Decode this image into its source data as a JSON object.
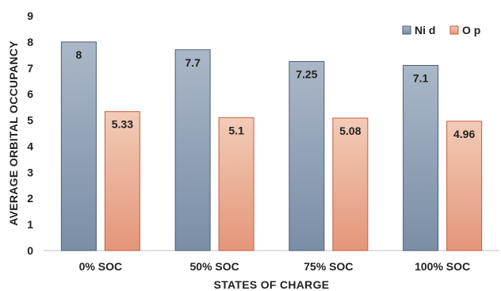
{
  "chart_data": {
    "type": "bar",
    "title": "",
    "xlabel": "STATES OF CHARGE",
    "ylabel": "AVERAGE ORBITAL OCCUPANCY",
    "categories": [
      "0% SOC",
      "50% SOC",
      "75% SOC",
      "100% SOC"
    ],
    "series": [
      {
        "name": "Ni d",
        "values": [
          8,
          7.7,
          7.25,
          7.1
        ],
        "labels": [
          "8",
          "7.7",
          "7.25",
          "7.1"
        ],
        "color_top": "#aab7c8",
        "color_bottom": "#7a8ea6",
        "stroke": "#4a5d78"
      },
      {
        "name": "O p",
        "values": [
          5.33,
          5.1,
          5.08,
          4.96
        ],
        "labels": [
          "5.33",
          "5.1",
          "5.08",
          "4.96"
        ],
        "color_top": "#f2cbb6",
        "color_bottom": "#e4967a",
        "stroke": "#c0603f"
      }
    ],
    "ylim": [
      0,
      9
    ],
    "yticks": [
      0,
      1,
      2,
      3,
      4,
      5,
      6,
      7,
      8,
      9
    ],
    "grid": false,
    "legend_position": "top-right"
  }
}
